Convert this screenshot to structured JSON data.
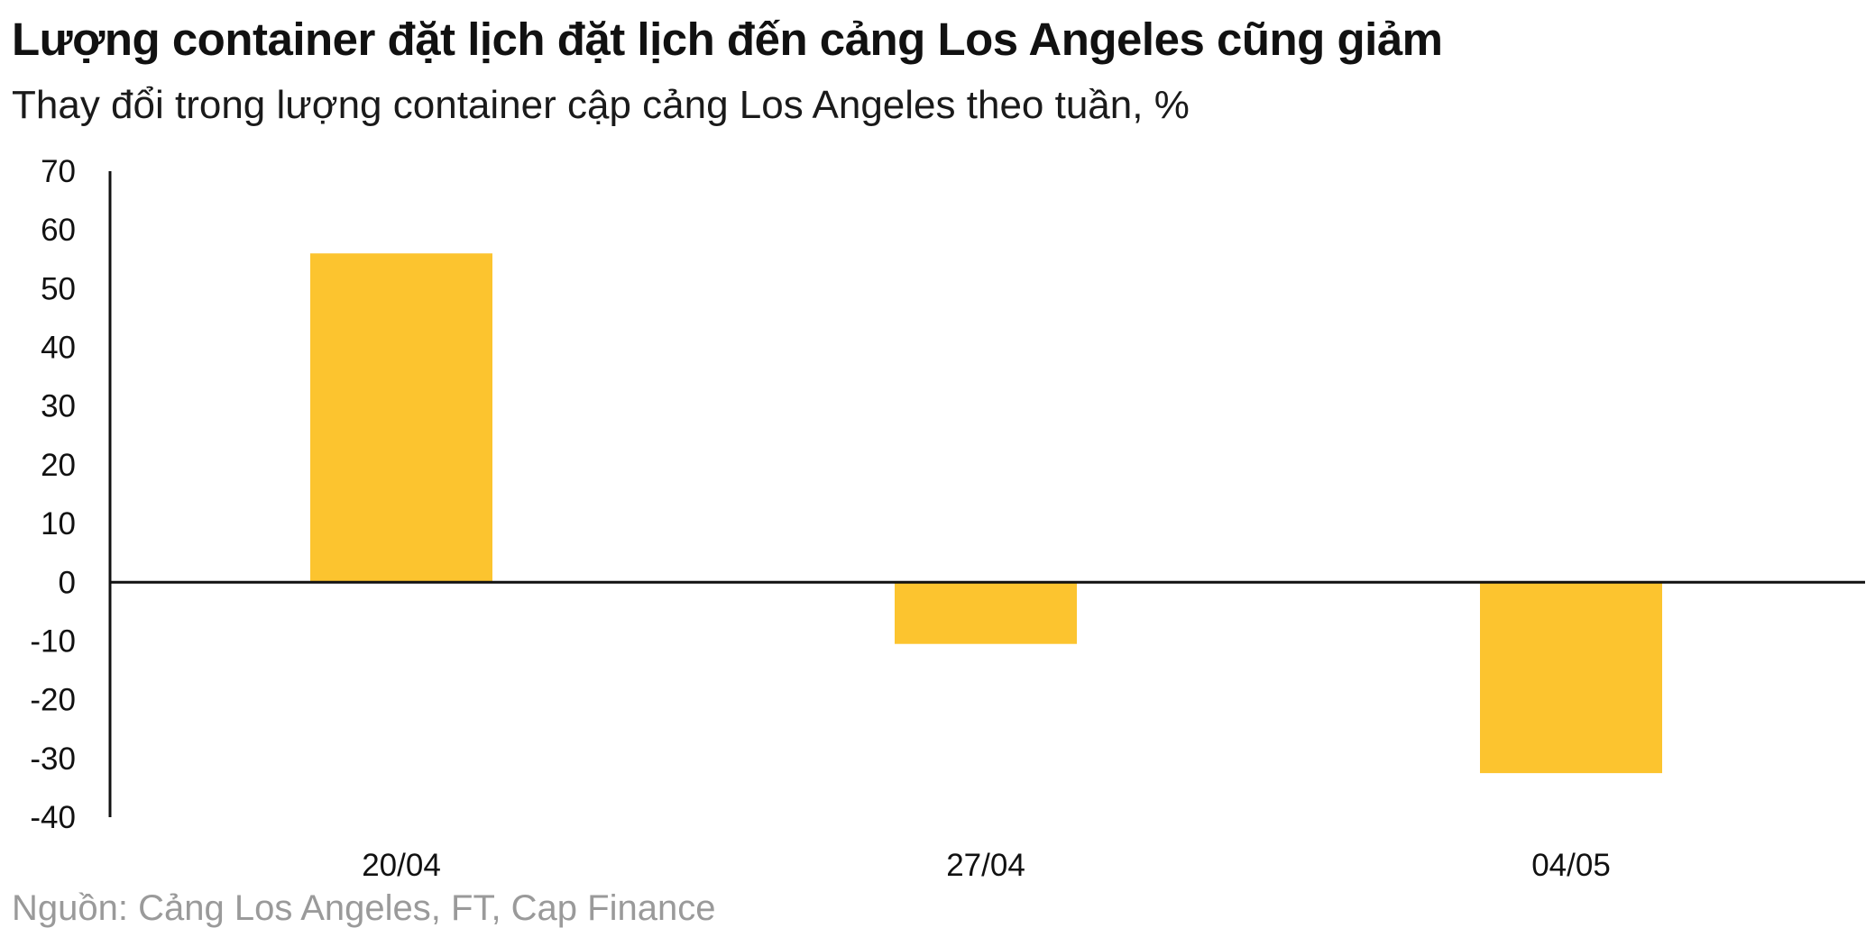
{
  "header": {
    "title": "Lượng container đặt lịch đặt lịch đến cảng Los Angeles cũng giảm",
    "subtitle": "Thay đổi trong lượng container cập cảng Los Angeles theo tuần, %"
  },
  "footer": {
    "source": "Nguồn: Cảng Los Angeles, FT, Cap Finance"
  },
  "colors": {
    "bar": "#FCC42F",
    "axis": "#111111",
    "source_text": "#9a9a9a"
  },
  "chart_data": {
    "type": "bar",
    "categories": [
      "20/04",
      "27/04",
      "04/05"
    ],
    "values": [
      56,
      -10.5,
      -32.5
    ],
    "ylim": [
      -40,
      70
    ],
    "yticks": [
      70,
      60,
      50,
      40,
      30,
      20,
      10,
      0,
      -10,
      -20,
      -30,
      -40
    ],
    "grid": false,
    "legend": "none"
  }
}
